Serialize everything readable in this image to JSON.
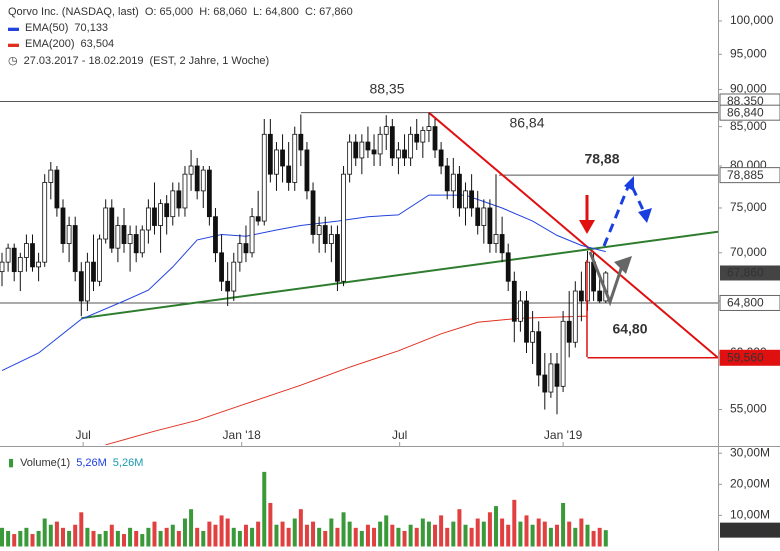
{
  "header": {
    "title": "Qorvo Inc. (NASDAQ, last)",
    "ohlc": "O: 65,000  H: 68,060  L: 64,800  C: 67,860",
    "range": "27.03.2017 - 18.02.2019",
    "range_note": "(EST, 2 Jahre, 1 Woche)"
  },
  "chart_data": {
    "type": "candlestick",
    "logy": true,
    "xlim": [
      -0.33,
      117.4
    ],
    "ylim": [
      52.0,
      103.28
    ],
    "yticks": [
      {
        "value": 55,
        "label": "55,000"
      },
      {
        "value": 60,
        "label": "60,000"
      },
      {
        "value": 65,
        "label": "65,000"
      },
      {
        "value": 70,
        "label": "70,000"
      },
      {
        "value": 75,
        "label": "75,000"
      },
      {
        "value": 80,
        "label": "80,000"
      },
      {
        "value": 85,
        "label": "85,000"
      },
      {
        "value": 90,
        "label": "90,000"
      },
      {
        "value": 95,
        "label": "95,000"
      },
      {
        "value": 100,
        "label": "100,000"
      }
    ],
    "xticks": [
      {
        "value": 13.3,
        "label": "Jul"
      },
      {
        "value": 39.3,
        "label": "Jan '18"
      },
      {
        "value": 65.2,
        "label": "Jul"
      },
      {
        "value": 92,
        "label": "Jan '19"
      }
    ],
    "up_color": "#ffffff",
    "down_color": "#111111",
    "candles": [
      [
        68,
        70,
        66.5,
        69
      ],
      [
        69,
        71,
        68,
        70.5
      ],
      [
        70.5,
        71,
        67,
        68
      ],
      [
        68,
        70,
        66,
        69.5
      ],
      [
        69.5,
        72,
        68,
        71
      ],
      [
        71,
        72,
        68,
        68.5
      ],
      [
        68.5,
        70,
        67,
        69
      ],
      [
        69,
        79,
        68.5,
        78
      ],
      [
        78,
        80.5,
        76,
        79.5
      ],
      [
        79.5,
        80,
        74,
        75
      ],
      [
        75,
        76,
        70,
        71
      ],
      [
        71,
        74,
        69,
        73
      ],
      [
        73,
        74,
        67,
        68
      ],
      [
        68,
        69,
        63.5,
        65
      ],
      [
        65,
        70,
        64,
        69
      ],
      [
        69,
        72,
        66,
        67
      ],
      [
        67,
        72,
        66.5,
        71.5
      ],
      [
        71.5,
        76,
        71,
        75
      ],
      [
        75,
        76,
        70,
        70.5
      ],
      [
        70.5,
        74,
        69,
        73
      ],
      [
        73,
        75,
        70,
        71
      ],
      [
        71,
        73,
        68,
        72
      ],
      [
        72,
        73,
        69,
        70
      ],
      [
        70,
        73,
        69.5,
        72.5
      ],
      [
        72.5,
        76,
        71,
        75
      ],
      [
        75,
        78,
        72,
        73
      ],
      [
        73,
        76,
        70,
        75.5
      ],
      [
        75.5,
        76.5,
        72,
        74
      ],
      [
        74,
        78,
        73,
        77
      ],
      [
        77,
        78,
        74,
        75
      ],
      [
        75,
        80,
        74,
        79
      ],
      [
        79,
        82,
        77,
        80
      ],
      [
        80,
        81,
        76,
        77
      ],
      [
        77,
        80,
        75,
        79.5
      ],
      [
        79.5,
        80,
        73,
        74
      ],
      [
        74,
        75,
        69,
        70
      ],
      [
        70,
        72,
        66,
        67
      ],
      [
        67,
        69,
        64.5,
        66
      ],
      [
        66,
        70,
        65,
        69
      ],
      [
        69,
        72,
        68,
        71
      ],
      [
        71,
        73,
        69,
        70
      ],
      [
        70,
        75,
        69.5,
        74
      ],
      [
        74,
        77,
        73,
        73.5
      ],
      [
        73.5,
        86,
        73,
        84
      ],
      [
        84,
        86,
        78,
        79
      ],
      [
        79,
        83,
        77,
        82
      ],
      [
        82,
        84,
        78,
        80
      ],
      [
        80,
        83,
        77,
        78
      ],
      [
        78,
        85,
        77,
        84
      ],
      [
        84,
        86.6,
        80,
        82
      ],
      [
        82,
        83,
        76,
        77
      ],
      [
        77,
        78,
        71,
        72
      ],
      [
        72,
        74,
        70,
        73
      ],
      [
        73,
        74,
        70,
        71
      ],
      [
        71,
        73,
        69,
        72
      ],
      [
        72,
        73,
        66,
        67
      ],
      [
        67,
        80,
        66.5,
        79
      ],
      [
        79,
        84,
        78,
        83
      ],
      [
        83,
        84,
        80,
        81
      ],
      [
        81,
        84,
        79,
        83
      ],
      [
        83,
        85,
        81,
        82
      ],
      [
        82,
        84,
        80,
        81.5
      ],
      [
        81.5,
        85,
        80,
        84
      ],
      [
        84,
        86.5,
        82,
        85
      ],
      [
        85,
        86,
        80,
        81
      ],
      [
        81,
        83,
        79,
        82
      ],
      [
        82,
        84,
        80,
        81
      ],
      [
        81,
        85,
        80,
        84
      ],
      [
        84,
        86,
        82,
        83
      ],
      [
        83,
        85,
        81,
        84.5
      ],
      [
        84.5,
        86.84,
        83,
        85
      ],
      [
        85,
        86,
        81,
        82
      ],
      [
        82,
        83,
        79,
        80
      ],
      [
        80,
        81,
        76,
        77
      ],
      [
        77,
        81,
        75,
        79
      ],
      [
        79,
        80,
        74,
        75
      ],
      [
        75,
        78,
        73,
        77
      ],
      [
        77,
        79,
        74,
        75
      ],
      [
        75,
        77,
        72,
        73
      ],
      [
        73,
        76,
        71,
        75
      ],
      [
        75,
        76,
        70,
        71
      ],
      [
        71,
        79,
        70,
        72
      ],
      [
        72,
        74,
        69,
        70
      ],
      [
        70,
        71,
        66,
        67
      ],
      [
        67,
        68,
        61,
        63
      ],
      [
        63,
        66,
        62,
        65
      ],
      [
        65,
        66,
        60,
        61
      ],
      [
        61,
        64,
        59,
        62
      ],
      [
        62,
        63,
        57,
        58
      ],
      [
        58,
        60,
        55,
        56.5
      ],
      [
        56.5,
        60,
        56,
        59
      ],
      [
        59,
        60,
        54.6,
        57
      ],
      [
        57,
        64,
        56.5,
        63
      ],
      [
        63,
        66,
        59.6,
        61
      ],
      [
        61,
        67,
        60.5,
        66
      ],
      [
        66,
        68,
        63,
        65
      ],
      [
        65,
        70.2,
        64,
        69
      ],
      [
        69,
        70,
        65,
        66
      ],
      [
        66,
        67.5,
        64.8,
        65
      ],
      [
        65,
        68.06,
        64.8,
        67.86
      ]
    ],
    "last_label": "67,860",
    "last_color": "#444444",
    "series": [
      {
        "name": "EMA(50)",
        "value_label": "70,133",
        "color": "#2244dd",
        "index": [
          0,
          6,
          13,
          20,
          24,
          28,
          32,
          36,
          40,
          45,
          49,
          55,
          60,
          65,
          70,
          76,
          82,
          87,
          91,
          95,
          99
        ],
        "values": [
          58.4,
          60,
          63.2,
          65,
          66.1,
          68.5,
          71.4,
          72,
          71.8,
          72.5,
          73,
          73.5,
          74,
          74.2,
          76.5,
          76.5,
          75,
          73.5,
          71.9,
          70.8,
          70.133
        ]
      },
      {
        "name": "EMA(200)",
        "value_label": "63,504",
        "color": "#e03020",
        "index": [
          17,
          25,
          32,
          40,
          49,
          57,
          65,
          72,
          78,
          85,
          90,
          96
        ],
        "values": [
          52.1,
          53.2,
          54.1,
          55.5,
          57.1,
          58.7,
          60.2,
          61.8,
          62.9,
          63.3,
          63.4,
          63.504
        ]
      }
    ],
    "levels": [
      {
        "value": 88.35,
        "label": "88,350",
        "annotation": "88,35",
        "annotation_color": "#555555",
        "from": -0.33,
        "color": "#555555"
      },
      {
        "value": 86.84,
        "label": "86,840",
        "annotation": "86,84",
        "annotation_color": "#555555",
        "from": 49,
        "color": "#555555"
      },
      {
        "value": 78.885,
        "label": "78,885",
        "annotation": "78,88",
        "annotation_color": "#1a3fe0",
        "from": 81.5,
        "color": "#555555"
      },
      {
        "value": 64.8,
        "label": "64,800",
        "annotation": "64,80",
        "annotation_color": "#666666",
        "from": -0.33,
        "color": "#555555"
      },
      {
        "value": 59.56,
        "label": "59,560",
        "from": 96,
        "color": "#e01010"
      }
    ],
    "trendlines": [
      {
        "color": "#e01010",
        "from": [
          70,
          86.84
        ],
        "to": [
          117.4,
          59.56
        ]
      },
      {
        "color": "#2e7d2e",
        "from": [
          13,
          63.3
        ],
        "to": [
          117.4,
          72.3
        ]
      }
    ],
    "volume": {
      "name": "Volume(1)",
      "last_label": "5,26M",
      "up_color": "#3a9a3a",
      "down_color": "#e04040",
      "ylim": [
        -1.45,
        32.0
      ],
      "yticks": [
        {
          "value": 10,
          "label": "10,00M"
        },
        {
          "value": 20,
          "label": "20,00M"
        },
        {
          "value": 30,
          "label": "30,00M"
        }
      ],
      "values": [
        6,
        5,
        4,
        5,
        6,
        4,
        5,
        9,
        7,
        8,
        6,
        5,
        7,
        11,
        6,
        5,
        4,
        5,
        7,
        5,
        4,
        6,
        5,
        4,
        6,
        8,
        5,
        6,
        7,
        5,
        9,
        12,
        6,
        5,
        8,
        7,
        10,
        9,
        6,
        5,
        7,
        6,
        8,
        24,
        14,
        7,
        8,
        6,
        9,
        12,
        7,
        8,
        6,
        5,
        9,
        6,
        11,
        8,
        6,
        5,
        7,
        6,
        8,
        10,
        7,
        6,
        5,
        7,
        6,
        9,
        8,
        7,
        10,
        6,
        8,
        12,
        7,
        6,
        9,
        8,
        11,
        13,
        9,
        7,
        15,
        8,
        10,
        7,
        9,
        8,
        6,
        7,
        14,
        8,
        6,
        9,
        7,
        5,
        6,
        5.26
      ]
    }
  }
}
